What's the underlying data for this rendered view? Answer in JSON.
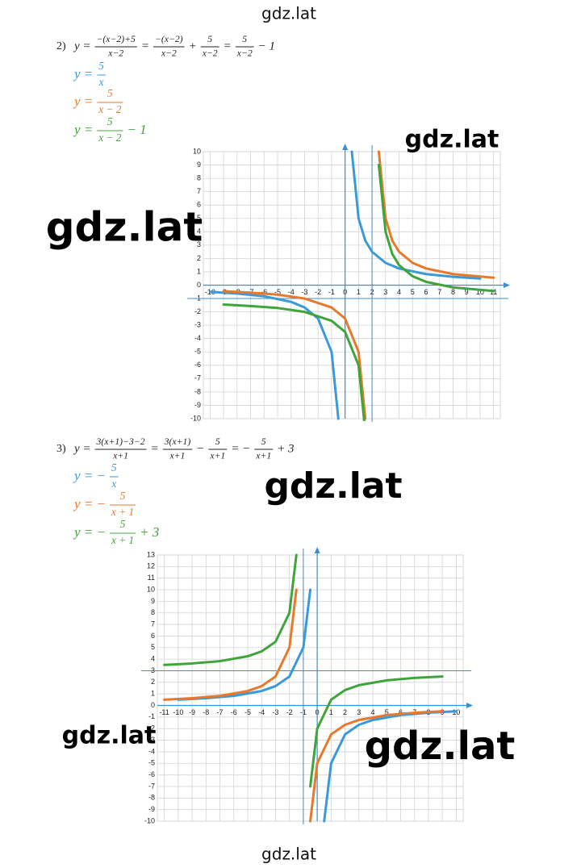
{
  "watermarks": [
    "gdz.lat",
    "gdz.lat",
    "gdz.lat",
    "gdz.lat",
    "gdz.lat",
    "gdz.lat",
    "gdz.lat"
  ],
  "problems": [
    {
      "number": "2)",
      "equation": [
        "y =",
        {
          "num": "−(x−2)+5",
          "den": "x−2"
        },
        "=",
        {
          "num": "−(x−2)",
          "den": "x−2"
        },
        "+",
        {
          "num": "5",
          "den": "x−2"
        },
        "=",
        {
          "num": "5",
          "den": "x−2"
        },
        "− 1"
      ],
      "functions": [
        {
          "color": "#3a9ad9",
          "parts": [
            "y =",
            {
              "num": "5",
              "den": "x"
            }
          ]
        },
        {
          "color": "#e8792b",
          "parts": [
            "y =",
            {
              "num": "5",
              "den": "x − 2"
            }
          ]
        },
        {
          "color": "#3fa53a",
          "parts": [
            "y =",
            {
              "num": "5",
              "den": "x − 2"
            },
            "− 1"
          ]
        }
      ]
    },
    {
      "number": "3)",
      "equation": [
        "y =",
        {
          "num": "3(x+1)−3−2",
          "den": "x+1"
        },
        "=",
        {
          "num": "3(x+1)",
          "den": "x+1"
        },
        "−",
        {
          "num": "5",
          "den": "x+1"
        },
        "= −",
        {
          "num": "5",
          "den": "x+1"
        },
        "+ 3"
      ],
      "functions": [
        {
          "color": "#3a9ad9",
          "parts": [
            "y = −",
            {
              "num": "5",
              "den": "x"
            }
          ]
        },
        {
          "color": "#e8792b",
          "parts": [
            "y = −",
            {
              "num": "5",
              "den": "x + 1"
            }
          ]
        },
        {
          "color": "#3fa53a",
          "parts": [
            "y = −",
            {
              "num": "5",
              "den": "x + 1"
            },
            "+ 3"
          ]
        }
      ]
    }
  ],
  "chart_data": [
    {
      "type": "line",
      "xlim": [
        -10.5,
        11.5
      ],
      "ylim": [
        -10,
        10
      ],
      "xticks": [
        -10,
        -9,
        -8,
        -7,
        -6,
        -5,
        -4,
        -3,
        -2,
        -1,
        0,
        1,
        2,
        3,
        4,
        5,
        6,
        7,
        8,
        9,
        10,
        11
      ],
      "yticks": [
        -10,
        -9,
        -8,
        -7,
        -6,
        -5,
        -4,
        -3,
        -2,
        -1,
        0,
        1,
        2,
        3,
        4,
        5,
        6,
        7,
        8,
        9,
        10
      ],
      "grid": true,
      "hlines": [
        -1
      ],
      "vlines": [
        2
      ],
      "series": [
        {
          "color": "#3a9ad9",
          "x": [
            -10,
            -8,
            -6,
            -4,
            -3,
            -2,
            -1,
            -0.5,
            null,
            0.5,
            1,
            1.5,
            2,
            3,
            4,
            6,
            8,
            10
          ],
          "values": [
            -0.5,
            -0.63,
            -0.83,
            -1.25,
            -1.67,
            -2.5,
            -5,
            -10,
            null,
            10,
            5,
            3.33,
            2.5,
            1.67,
            1.25,
            0.83,
            0.63,
            0.5
          ]
        },
        {
          "color": "#e8792b",
          "x": [
            -9,
            -7,
            -5,
            -3,
            -1,
            0,
            1,
            1.5,
            null,
            2.5,
            3,
            3.5,
            4,
            5,
            6,
            8,
            11
          ],
          "values": [
            -0.45,
            -0.56,
            -0.71,
            -1,
            -1.67,
            -2.5,
            -5,
            -10,
            null,
            10,
            5,
            3.33,
            2.5,
            1.67,
            1.25,
            0.83,
            0.56
          ]
        },
        {
          "color": "#3fa53a",
          "x": [
            -9,
            -7,
            -5,
            -3,
            -1,
            0,
            1,
            1.5,
            null,
            2.5,
            3,
            3.5,
            4,
            5,
            6,
            8,
            11
          ],
          "values": [
            -1.45,
            -1.56,
            -1.71,
            -2,
            -2.67,
            -3.5,
            -6,
            -11,
            null,
            9,
            4,
            2.33,
            1.5,
            0.67,
            0.25,
            -0.17,
            -0.44
          ]
        }
      ]
    },
    {
      "type": "line",
      "xlim": [
        -11.5,
        10.5
      ],
      "ylim": [
        -10,
        13
      ],
      "xticks": [
        -11,
        -10,
        -9,
        -8,
        -7,
        -6,
        -5,
        -4,
        -3,
        -2,
        -1,
        0,
        1,
        2,
        3,
        4,
        5,
        6,
        7,
        8,
        9,
        10
      ],
      "yticks": [
        -10,
        -9,
        -8,
        -7,
        -6,
        -5,
        -4,
        -3,
        -2,
        -1,
        0,
        1,
        2,
        3,
        4,
        5,
        6,
        7,
        8,
        9,
        10,
        11,
        12,
        13
      ],
      "grid": true,
      "hlines": [
        3
      ],
      "vlines": [
        -1
      ],
      "series": [
        {
          "color": "#3a9ad9",
          "x": [
            -10,
            -8,
            -6,
            -4,
            -3,
            -2,
            -1,
            -0.5,
            null,
            0.5,
            1,
            2,
            3,
            4,
            6,
            8,
            10
          ],
          "values": [
            0.5,
            0.63,
            0.83,
            1.25,
            1.67,
            2.5,
            5,
            10,
            null,
            -10,
            -5,
            -2.5,
            -1.67,
            -1.25,
            -0.83,
            -0.63,
            -0.5
          ]
        },
        {
          "color": "#e8792b",
          "x": [
            -11,
            -9,
            -7,
            -5,
            -4,
            -3,
            -2,
            -1.5,
            null,
            -0.5,
            0,
            1,
            2,
            3,
            5,
            7,
            9
          ],
          "values": [
            0.5,
            0.63,
            0.83,
            1.25,
            1.67,
            2.5,
            5,
            10,
            null,
            -10,
            -5,
            -2.5,
            -1.67,
            -1.25,
            -0.83,
            -0.63,
            -0.5
          ]
        },
        {
          "color": "#3fa53a",
          "x": [
            -11,
            -9,
            -7,
            -5,
            -4,
            -3,
            -2,
            -1.5,
            null,
            -0.5,
            0,
            1,
            2,
            3,
            5,
            7,
            9
          ],
          "values": [
            3.5,
            3.63,
            3.83,
            4.25,
            4.67,
            5.5,
            8,
            13,
            null,
            -7,
            -2,
            0.5,
            1.33,
            1.75,
            2.17,
            2.38,
            2.5
          ]
        }
      ]
    }
  ]
}
